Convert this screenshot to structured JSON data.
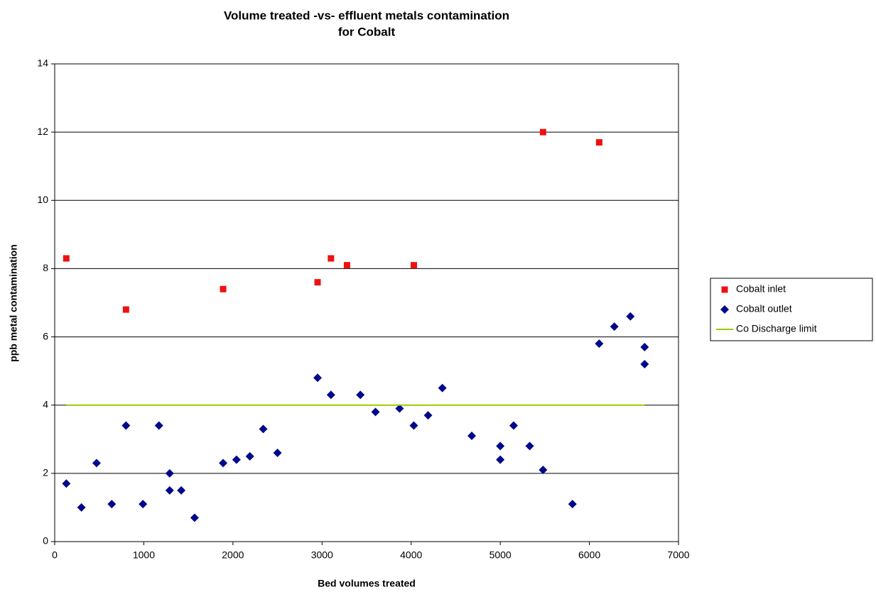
{
  "chart_data": {
    "type": "scatter",
    "title": "Volume treated -vs- effluent metals contamination",
    "subtitle": "for Cobalt",
    "x_label": "Bed volumes treated",
    "y_label": "ppb metal contamination",
    "xlim": [
      0,
      7000
    ],
    "xticks": [
      0,
      1000,
      2000,
      3000,
      4000,
      5000,
      6000,
      7000
    ],
    "ylim": [
      0,
      14
    ],
    "yticks": [
      0,
      2,
      4,
      6,
      8,
      10,
      12,
      14
    ],
    "grid": true,
    "legend": "right",
    "series": [
      {
        "name": "Cobalt inlet",
        "color": "#ee1111",
        "marker": "square",
        "x": [
          130,
          800,
          1890,
          2950,
          3100,
          3280,
          4030,
          5480,
          6110
        ],
        "values": [
          8.3,
          6.8,
          7.4,
          7.6,
          8.3,
          8.1,
          8.1,
          12.0,
          11.7
        ]
      },
      {
        "name": "Cobalt outlet",
        "color": "#00088a",
        "marker": "diamond",
        "x": [
          130,
          300,
          470,
          640,
          800,
          990,
          1170,
          1290,
          1290,
          1420,
          1570,
          1890,
          2040,
          2190,
          2340,
          2500,
          2950,
          3100,
          3430,
          3600,
          3870,
          4030,
          4190,
          4350,
          4680,
          5000,
          5000,
          5150,
          5330,
          5480,
          5810,
          6110,
          6280,
          6460,
          6620,
          6620
        ],
        "values": [
          1.7,
          1.0,
          2.3,
          1.1,
          3.4,
          1.1,
          3.4,
          2.0,
          1.5,
          1.5,
          0.7,
          2.3,
          2.4,
          2.5,
          3.3,
          2.6,
          4.8,
          4.3,
          4.3,
          3.8,
          3.9,
          3.4,
          3.7,
          4.5,
          3.1,
          2.8,
          2.4,
          3.4,
          2.8,
          2.1,
          1.1,
          5.8,
          6.3,
          6.6,
          5.7,
          5.2
        ]
      },
      {
        "name": "Co Discharge limit",
        "color": "#99cc00",
        "marker": "line",
        "x": [
          130,
          6620
        ],
        "values": [
          4,
          4
        ]
      }
    ]
  }
}
